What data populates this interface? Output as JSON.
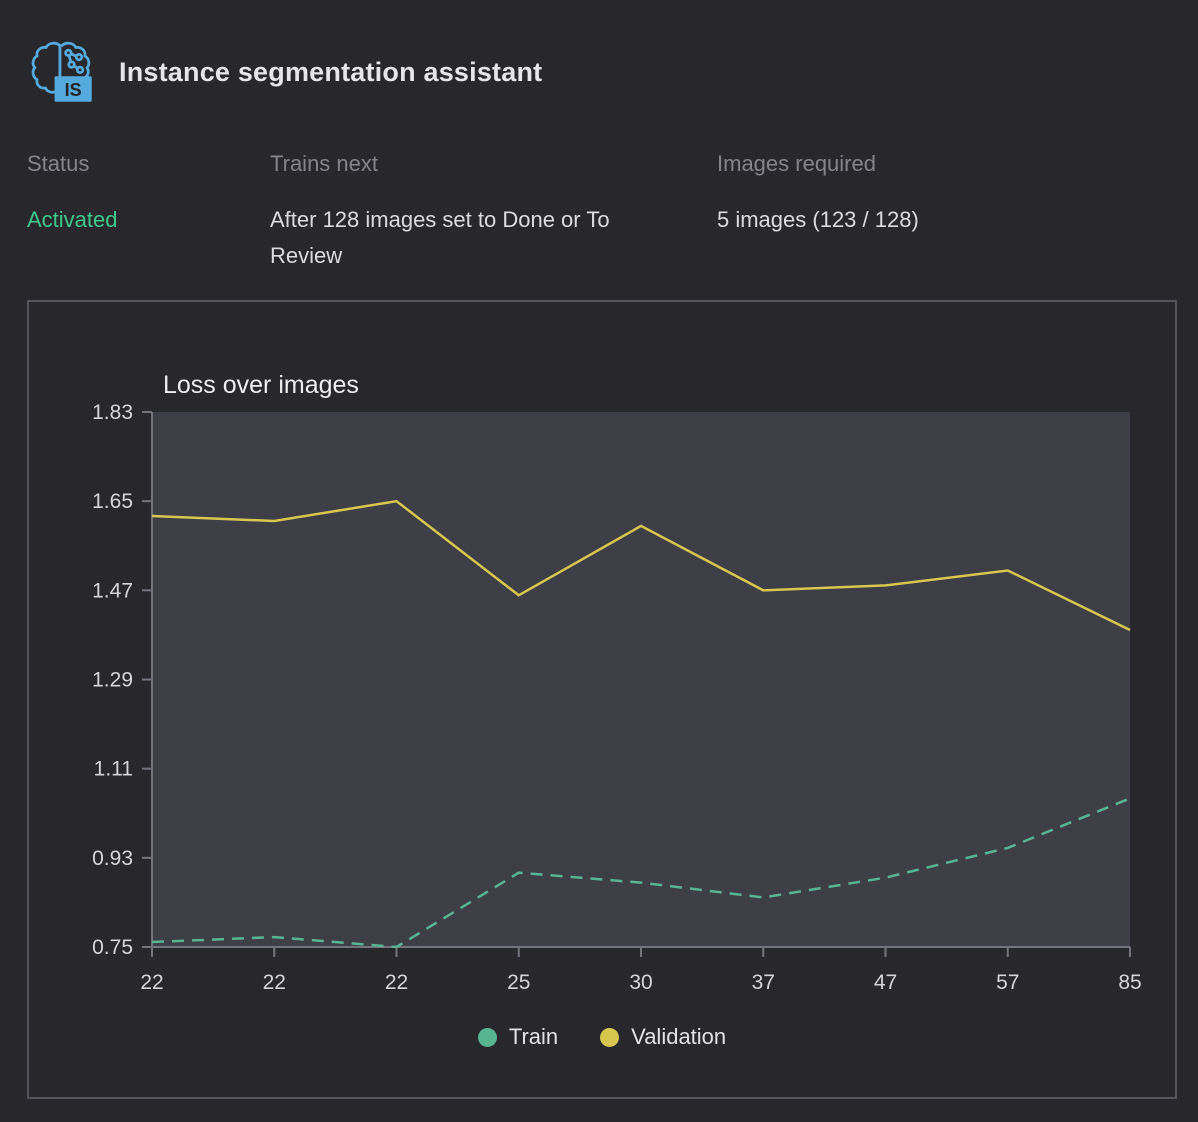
{
  "header": {
    "title": "Instance segmentation assistant",
    "icon_badge": "IS",
    "icon_color": "#55aadd"
  },
  "info": {
    "status": {
      "label": "Status",
      "value": "Activated",
      "value_color": "#3fc98c"
    },
    "trains_next": {
      "label": "Trains next",
      "value": "After 128 images set to Done or To Review"
    },
    "images_required": {
      "label": "Images required",
      "value": "5 images (123 / 128)"
    }
  },
  "chart": {
    "title": "Loss over images"
  },
  "chart_data": {
    "type": "line",
    "title": "Loss over images",
    "xlabel": "",
    "ylabel": "",
    "x_labels": [
      "22",
      "22",
      "22",
      "25",
      "30",
      "37",
      "47",
      "57",
      "85"
    ],
    "ylim": [
      0.75,
      1.83
    ],
    "y_ticks": [
      "0.75",
      "0.93",
      "1.11",
      "1.29",
      "1.47",
      "1.65",
      "1.83"
    ],
    "grid": false,
    "legend_position": "bottom",
    "series": [
      {
        "name": "Train",
        "color": "#58b591",
        "style": "dashed",
        "values": [
          0.76,
          0.77,
          0.75,
          0.9,
          0.88,
          0.85,
          0.89,
          0.95,
          1.05
        ]
      },
      {
        "name": "Validation",
        "color": "#d8c74f",
        "style": "solid",
        "values": [
          1.62,
          1.61,
          1.65,
          1.46,
          1.6,
          1.47,
          1.48,
          1.51,
          1.39
        ]
      }
    ],
    "colors": {
      "plot_bg": "#3e3e46",
      "axis": "#74747c",
      "tick_text": "#d6d6d8"
    }
  }
}
